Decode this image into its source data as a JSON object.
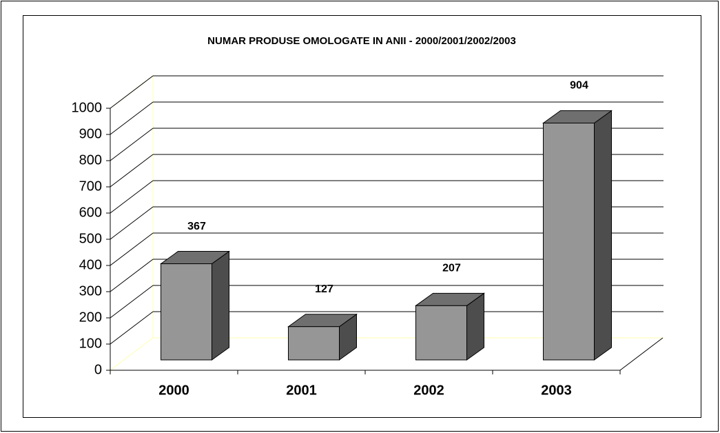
{
  "chart_data": {
    "type": "bar3d",
    "title": "NUMAR PRODUSE OMOLOGATE IN ANII - 2000/2001/2002/2003",
    "categories": [
      "2000",
      "2001",
      "2002",
      "2003"
    ],
    "values": [
      367,
      127,
      207,
      904
    ],
    "color": "#969696",
    "ylim": [
      0,
      1000
    ],
    "yticks": [
      0,
      100,
      200,
      300,
      400,
      500,
      600,
      700,
      800,
      900,
      1000
    ],
    "grid": true
  }
}
